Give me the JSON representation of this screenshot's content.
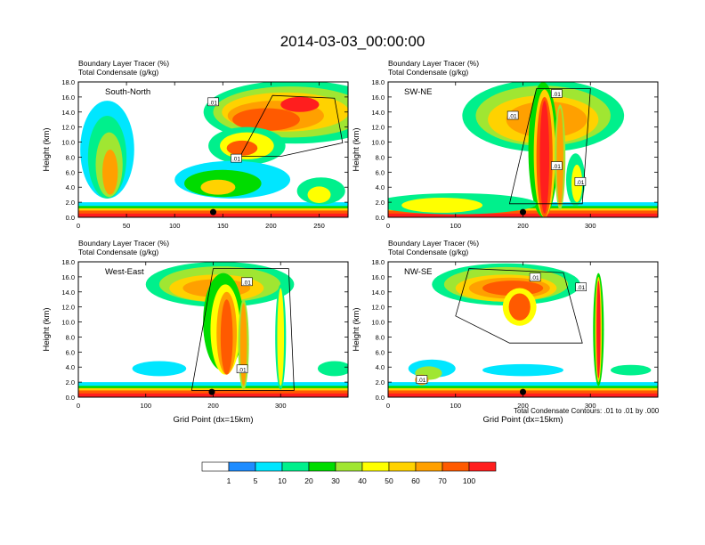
{
  "title": "2014-03-03_00:00:00",
  "footer_note": "Total Condensate Contours: .01 to .01 by .000",
  "colors": [
    "#ffffff",
    "#1e8cff",
    "#00e6ff",
    "#00f08c",
    "#00dc00",
    "#a0e632",
    "#ffff00",
    "#ffd200",
    "#ffa000",
    "#ff5a00",
    "#ff1e1e"
  ],
  "colorbar_labels": [
    "1",
    "5",
    "10",
    "20",
    "30",
    "40",
    "50",
    "60",
    "70",
    "100"
  ],
  "chart_data": [
    {
      "type": "heatmap",
      "panel_label": "South-North",
      "header_lines": [
        "Boundary Layer Tracer   (%)",
        "Total Condensate   (g/kg)"
      ],
      "ylabel": "Height (km)",
      "xlabel": "",
      "xlim": [
        0,
        280
      ],
      "ylim": [
        0,
        18
      ],
      "x_ticks": [
        "0",
        "50",
        "100",
        "150",
        "200",
        "250"
      ],
      "x_tick_values": [
        0,
        50,
        100,
        150,
        200,
        250
      ],
      "y_ticks": [
        "0.0",
        "2.0",
        "4.0",
        "6.0",
        "8.0",
        "10.0",
        "12.0",
        "14.0",
        "16.0",
        "18.0"
      ],
      "contour_labels": [
        {
          "text": ".01",
          "x": 140,
          "y": 15.3
        },
        {
          "text": ".01",
          "x": 164,
          "y": 7.8
        }
      ],
      "marker_x": 140
    },
    {
      "type": "heatmap",
      "panel_label": "SW-NE",
      "header_lines": [
        "Boundary Layer Tracer   (%)",
        "Total Condensate   (g/kg)"
      ],
      "ylabel": "Height (km)",
      "xlabel": "",
      "xlim": [
        0,
        400
      ],
      "ylim": [
        0,
        18
      ],
      "x_ticks": [
        "0",
        "100",
        "200",
        "300"
      ],
      "x_tick_values": [
        0,
        100,
        200,
        300
      ],
      "y_ticks": [
        "0.0",
        "2.0",
        "4.0",
        "6.0",
        "8.0",
        "10.0",
        "12.0",
        "14.0",
        "16.0",
        "18.0"
      ],
      "contour_labels": [
        {
          "text": ".01",
          "x": 250,
          "y": 16.4
        },
        {
          "text": ".01",
          "x": 185,
          "y": 13.5
        },
        {
          "text": ".01",
          "x": 250,
          "y": 6.8
        },
        {
          "text": ".01",
          "x": 285,
          "y": 4.7
        }
      ],
      "marker_x": 200
    },
    {
      "type": "heatmap",
      "panel_label": "West-East",
      "header_lines": [
        "Boundary Layer Tracer   (%)",
        "Total Condensate   (g/kg)"
      ],
      "ylabel": "Height (km)",
      "xlabel": "Grid Point (dx=15km)",
      "xlim": [
        0,
        400
      ],
      "ylim": [
        0,
        18
      ],
      "x_ticks": [
        "0",
        "100",
        "200",
        "300"
      ],
      "x_tick_values": [
        0,
        100,
        200,
        300
      ],
      "y_ticks": [
        "0.0",
        "2.0",
        "4.0",
        "6.0",
        "8.0",
        "10.0",
        "12.0",
        "14.0",
        "16.0",
        "18.0"
      ],
      "contour_labels": [
        {
          "text": ".01",
          "x": 250,
          "y": 15.3
        },
        {
          "text": ".01",
          "x": 243,
          "y": 3.7
        }
      ],
      "marker_x": 198
    },
    {
      "type": "heatmap",
      "panel_label": "NW-SE",
      "header_lines": [
        "Boundary Layer Tracer   (%)",
        "Total Condensate   (g/kg)"
      ],
      "ylabel": "Height (km)",
      "xlabel": "Grid Point (dx=15km)",
      "xlim": [
        0,
        400
      ],
      "ylim": [
        0,
        18
      ],
      "x_ticks": [
        "0",
        "100",
        "200",
        "300"
      ],
      "x_tick_values": [
        0,
        100,
        200,
        300
      ],
      "y_ticks": [
        "0.0",
        "2.0",
        "4.0",
        "6.0",
        "8.0",
        "10.0",
        "12.0",
        "14.0",
        "16.0",
        "18.0"
      ],
      "contour_labels": [
        {
          "text": ".01",
          "x": 218,
          "y": 15.9
        },
        {
          "text": ".01",
          "x": 286,
          "y": 14.6
        },
        {
          "text": ".01",
          "x": 50,
          "y": 2.3
        }
      ],
      "marker_x": 200
    }
  ]
}
